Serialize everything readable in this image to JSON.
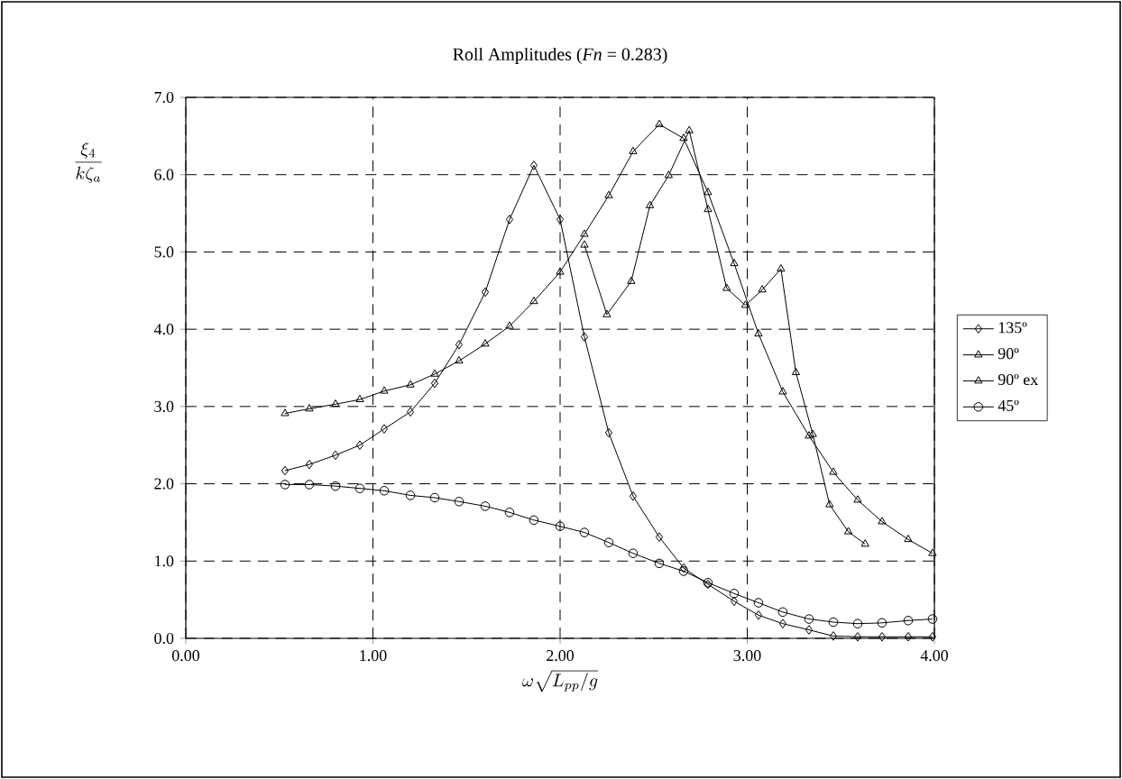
{
  "chart_data": {
    "type": "line",
    "title": "Roll Amplitudes (*Fn* = 0.283)",
    "xlabel": "\\omega\\sqrt{L_{pp}/g}",
    "ylabel": "\\frac{\\xi_4}{k\\zeta_a}",
    "x": [
      0.53,
      0.66,
      0.8,
      0.93,
      1.06,
      1.2,
      1.33,
      1.46,
      1.6,
      1.73,
      1.86,
      2.0,
      2.13,
      2.26,
      2.39,
      2.53,
      2.66,
      2.79,
      2.93,
      3.06,
      3.19,
      3.33,
      3.46,
      3.59,
      3.72,
      3.86,
      3.99
    ],
    "series": [
      {
        "name": "135º",
        "color": "#000000",
        "marker": "diamond",
        "values": [
          2.17,
          2.25,
          2.37,
          2.5,
          2.71,
          2.93,
          3.3,
          3.8,
          4.48,
          5.42,
          6.12,
          5.42,
          3.9,
          2.66,
          1.84,
          1.31,
          0.91,
          0.7,
          0.48,
          0.3,
          0.19,
          0.11,
          0.03,
          0.02,
          0.02,
          0.02,
          0.02
        ]
      },
      {
        "name": "90º",
        "color": "#000000",
        "marker": "triangle",
        "values": [
          2.91,
          2.97,
          3.03,
          3.09,
          3.2,
          3.28,
          3.42,
          3.59,
          3.81,
          4.04,
          4.36,
          4.74,
          5.23,
          5.73,
          6.3,
          6.65,
          6.47,
          5.77,
          4.85,
          3.94,
          3.19,
          2.62,
          2.15,
          1.79,
          1.51,
          1.28,
          1.1
        ]
      },
      {
        "name": "90º ex",
        "color": "#000000",
        "marker": "triangle",
        "x": [
          2.13,
          2.25,
          2.38,
          2.48,
          2.58,
          2.69,
          2.79,
          2.89,
          2.99,
          3.08,
          3.18,
          3.26,
          3.35,
          3.44,
          3.54,
          3.63
        ],
        "values": [
          5.09,
          4.19,
          4.62,
          5.6,
          5.99,
          6.57,
          5.55,
          4.53,
          4.31,
          4.51,
          4.78,
          3.44,
          2.64,
          1.73,
          1.38,
          1.22
        ]
      },
      {
        "name": "45º",
        "color": "#000000",
        "marker": "circle",
        "values": [
          1.99,
          1.99,
          1.97,
          1.94,
          1.91,
          1.85,
          1.82,
          1.77,
          1.71,
          1.63,
          1.53,
          1.45,
          1.37,
          1.24,
          1.1,
          0.97,
          0.87,
          0.72,
          0.58,
          0.46,
          0.34,
          0.25,
          0.21,
          0.19,
          0.2,
          0.23,
          0.25
        ]
      }
    ],
    "xlim": [
      0,
      4
    ],
    "xticks": [
      {
        "value": 0,
        "label": "0.00"
      },
      {
        "value": 1,
        "label": "1.00"
      },
      {
        "value": 2,
        "label": "2.00"
      },
      {
        "value": 3,
        "label": "3.00"
      },
      {
        "value": 4,
        "label": "4.00"
      }
    ],
    "ylim": [
      0,
      7
    ],
    "yticks": [
      {
        "value": 0,
        "label": "0.0"
      },
      {
        "value": 1,
        "label": "1.0"
      },
      {
        "value": 2,
        "label": "2.0"
      },
      {
        "value": 3,
        "label": "3.0"
      },
      {
        "value": 4,
        "label": "4.0"
      },
      {
        "value": 5,
        "label": "5.0"
      },
      {
        "value": 6,
        "label": "6.0"
      },
      {
        "value": 7,
        "label": "7.0"
      }
    ],
    "grid": true,
    "legend": "right",
    "line_style": "solid"
  }
}
